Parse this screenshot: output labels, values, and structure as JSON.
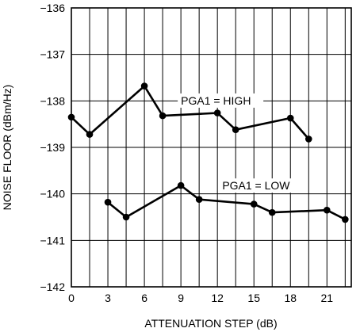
{
  "chart_data": {
    "type": "line",
    "title": "",
    "xlabel": "ATTENUATION STEP (dB)",
    "ylabel": "NOISE FLOOR (dBm/Hz)",
    "xlim": [
      0,
      23
    ],
    "ylim": [
      -142,
      -136
    ],
    "x_ticks": [
      0,
      3,
      6,
      9,
      12,
      15,
      18,
      21
    ],
    "x_tick_labels": [
      "0",
      "3",
      "6",
      "9",
      "12",
      "15",
      "18",
      "21"
    ],
    "y_ticks": [
      -136,
      -137,
      -138,
      -139,
      -140,
      -141,
      -142
    ],
    "y_tick_labels": [
      "−136",
      "−137",
      "−138",
      "−139",
      "−140",
      "−141",
      "−142"
    ],
    "x_grid_step": 1.5,
    "grid": true,
    "legend": "none",
    "series": [
      {
        "name": "PGA1 = HIGH",
        "x": [
          0,
          1.5,
          6,
          7.5,
          12,
          13.5,
          18,
          19.5
        ],
        "y": [
          -138.35,
          -138.72,
          -137.68,
          -138.32,
          -138.26,
          -138.62,
          -138.37,
          -138.82
        ]
      },
      {
        "name": "PGA1 = LOW",
        "x": [
          3,
          4.5,
          9,
          10.5,
          15,
          16.5,
          21,
          22.5
        ],
        "y": [
          -140.18,
          -140.5,
          -139.82,
          -140.12,
          -140.22,
          -140.4,
          -140.35,
          -140.55
        ]
      }
    ],
    "annotations": [
      {
        "text": "PGA1 = HIGH",
        "series": 0
      },
      {
        "text": "PGA1 = LOW",
        "series": 1
      }
    ],
    "colors": {
      "line": "#000000",
      "grid": "#000000",
      "background": "#ffffff"
    }
  }
}
